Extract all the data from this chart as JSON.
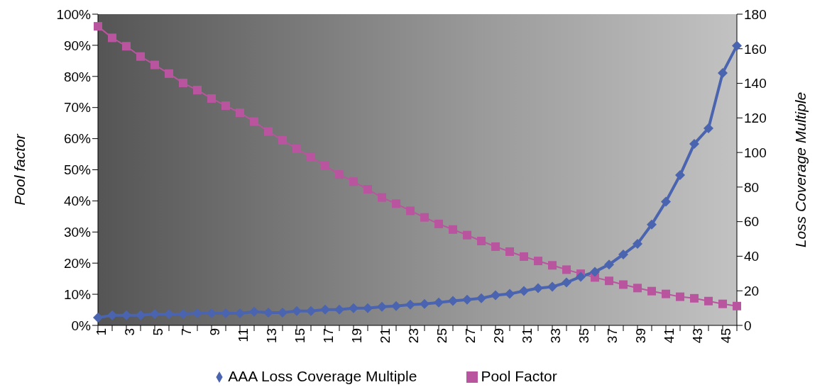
{
  "chart_data": {
    "type": "line",
    "ylabel": "Pool factor",
    "y2label": "Loss Coverage Multiple",
    "categories": [
      "1",
      null,
      "3",
      null,
      "5",
      null,
      "7",
      null,
      "9",
      null,
      "11",
      null,
      "13",
      null,
      "15",
      null,
      "17",
      null,
      "19",
      null,
      "21",
      null,
      "23",
      null,
      "25",
      null,
      "27",
      null,
      "29",
      null,
      "31",
      null,
      "33",
      null,
      "35",
      null,
      "37",
      null,
      "39",
      null,
      "41",
      null,
      "43",
      null,
      "45",
      null
    ],
    "series": [
      {
        "name": "Pool Factor",
        "color": "#b9559f",
        "marker": "square",
        "values": [
          96.1,
          92.4,
          89.7,
          86.4,
          83.7,
          80.9,
          77.9,
          75.6,
          72.9,
          70.6,
          68.3,
          65.5,
          62.3,
          59.5,
          56.8,
          54.0,
          51.3,
          48.5,
          46.2,
          43.7,
          41.1,
          39.1,
          36.8,
          34.7,
          32.6,
          30.8,
          29.0,
          27.1,
          25.3,
          23.7,
          22.1,
          20.7,
          19.3,
          17.9,
          16.6,
          15.4,
          14.3,
          13.1,
          12.0,
          11.0,
          10.1,
          9.2,
          8.7,
          7.8,
          6.9,
          6.2
        ]
      },
      {
        "name": "AAA Loss Coverage Multiple",
        "color": "#4a64b0",
        "marker": "diamond",
        "axis": "y2",
        "values": [
          4.5,
          5.8,
          5.8,
          5.8,
          6.6,
          6.6,
          6.6,
          7.0,
          7.0,
          7.0,
          7.0,
          7.9,
          7.4,
          7.4,
          8.3,
          8.3,
          9.1,
          9.1,
          9.9,
          9.9,
          10.8,
          11.2,
          12,
          12.4,
          13.2,
          14.1,
          14.9,
          15.7,
          17.4,
          18.2,
          19.9,
          21.5,
          22.3,
          24.8,
          28.1,
          31,
          35.2,
          41,
          47.2,
          58.3,
          71.6,
          86.9,
          105,
          114,
          146,
          161.8
        ]
      }
    ],
    "ylim": [
      0,
      100
    ],
    "yticks": [
      {
        "value": 0,
        "label": "0%"
      },
      {
        "value": 10,
        "label": "10%"
      },
      {
        "value": 20,
        "label": "20%"
      },
      {
        "value": 30,
        "label": "30%"
      },
      {
        "value": 40,
        "label": "40%"
      },
      {
        "value": 50,
        "label": "50%"
      },
      {
        "value": 60,
        "label": "60%"
      },
      {
        "value": 70,
        "label": "70%"
      },
      {
        "value": 80,
        "label": "80%"
      },
      {
        "value": 90,
        "label": "90%"
      },
      {
        "value": 100,
        "label": "100%"
      }
    ],
    "y2lim": [
      0,
      180
    ],
    "y2ticks": [
      0,
      20,
      40,
      60,
      80,
      100,
      120,
      140,
      160,
      180
    ],
    "grid": false,
    "legend": "bottom",
    "line_style": "solid"
  }
}
